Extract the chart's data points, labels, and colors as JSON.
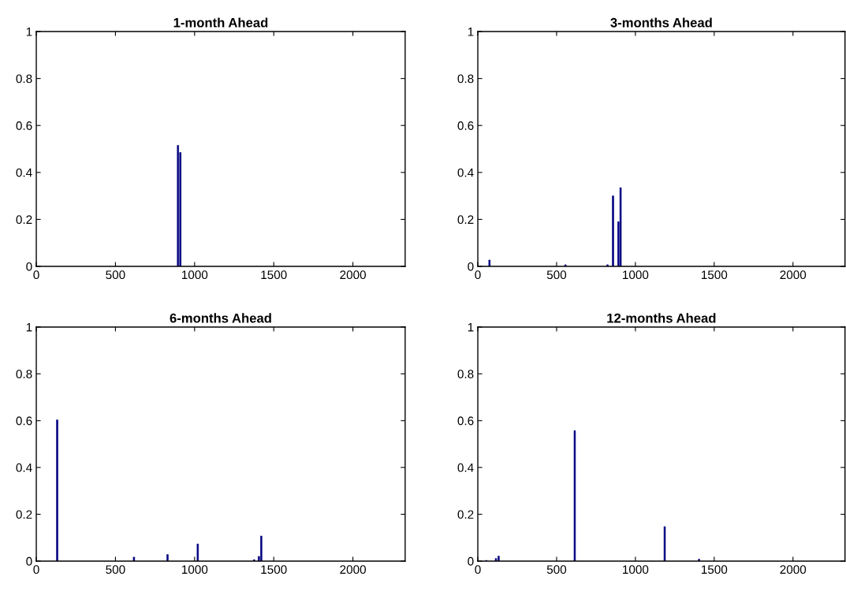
{
  "chart_data": [
    {
      "type": "bar",
      "title": "1-month Ahead",
      "x": [
        895,
        910
      ],
      "values": [
        0.515,
        0.485
      ],
      "color": "#000080",
      "xlim": [
        0,
        2330
      ],
      "ylim": [
        0,
        1
      ],
      "xticks": [
        0,
        500,
        1000,
        1500,
        2000
      ],
      "yticks": [
        0,
        0.2,
        0.4,
        0.6,
        0.8,
        1
      ],
      "grid": false
    },
    {
      "type": "bar",
      "title": "3-months Ahead",
      "x": [
        74,
        556,
        823,
        858,
        892,
        906
      ],
      "values": [
        0.027,
        0.007,
        0.007,
        0.3,
        0.19,
        0.335
      ],
      "color": "#000080",
      "xlim": [
        0,
        2330
      ],
      "ylim": [
        0,
        1
      ],
      "xticks": [
        0,
        500,
        1000,
        1500,
        2000
      ],
      "yticks": [
        0,
        0.2,
        0.4,
        0.6,
        0.8,
        1
      ],
      "grid": false
    },
    {
      "type": "bar",
      "title": "6-months Ahead",
      "x": [
        132,
        617,
        829,
        1020,
        1189,
        1376,
        1406,
        1421
      ],
      "values": [
        0.603,
        0.017,
        0.028,
        0.073,
        null,
        0.006,
        0.02,
        0.107
      ],
      "color": "#000080",
      "xlim": [
        0,
        2330
      ],
      "ylim": [
        0,
        1
      ],
      "xticks": [
        0,
        500,
        1000,
        1500,
        2000
      ],
      "yticks": [
        0,
        0.2,
        0.4,
        0.6,
        0.8,
        1
      ],
      "grid": false
    },
    {
      "type": "bar",
      "title": "12-months Ahead",
      "x": [
        54,
        115,
        132,
        561,
        615,
        1186,
        1404
      ],
      "values": [
        0.003,
        0.011,
        0.021,
        null,
        0.557,
        0.147,
        0.008
      ],
      "color": "#000080",
      "xlim": [
        0,
        2330
      ],
      "ylim": [
        0,
        1
      ],
      "xticks": [
        0,
        500,
        1000,
        1500,
        2000
      ],
      "yticks": [
        0,
        0.2,
        0.4,
        0.6,
        0.8,
        1
      ],
      "grid": false
    }
  ]
}
